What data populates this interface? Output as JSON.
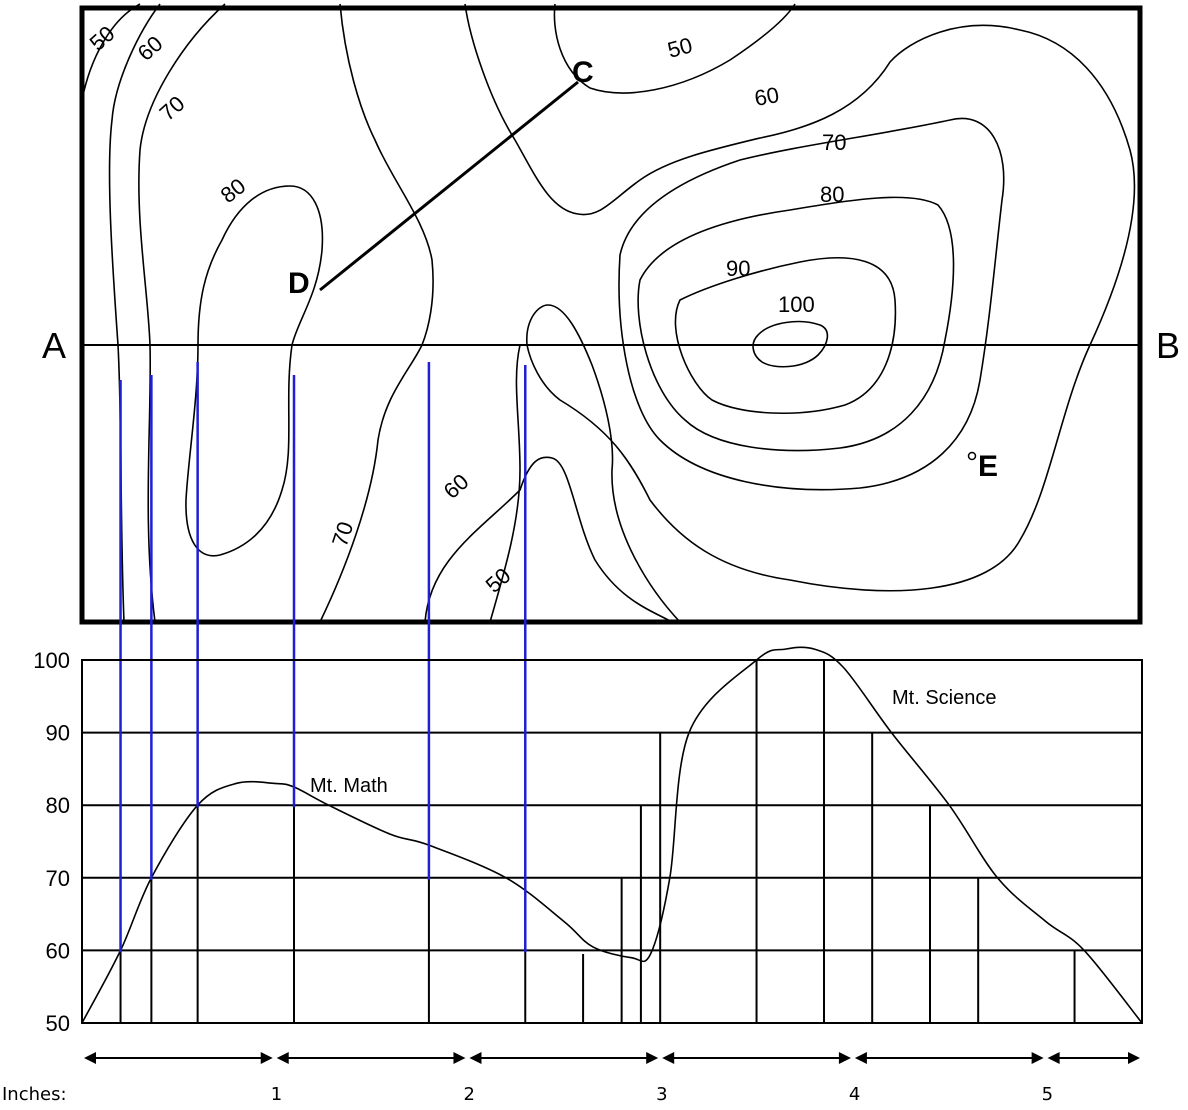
{
  "map": {
    "endpoints": {
      "a": "A",
      "b": "B"
    },
    "points": {
      "c": "C",
      "d": "D",
      "e": "E"
    },
    "contour_labels": [
      {
        "id": "ul-50",
        "text": "50",
        "angle": -42
      },
      {
        "id": "ul-60",
        "text": "60",
        "angle": -42
      },
      {
        "id": "ul-70",
        "text": "70",
        "angle": -42
      },
      {
        "id": "ul-80",
        "text": "80",
        "angle": -38
      },
      {
        "id": "top-50",
        "text": "50",
        "angle": -15
      },
      {
        "id": "right-60",
        "text": "60",
        "angle": -10
      },
      {
        "id": "right-70",
        "text": "70",
        "angle": 0
      },
      {
        "id": "right-80",
        "text": "80",
        "angle": 0
      },
      {
        "id": "right-90",
        "text": "90",
        "angle": 0
      },
      {
        "id": "right-100",
        "text": "100",
        "angle": 0
      },
      {
        "id": "lower-60",
        "text": "60",
        "angle": -42
      },
      {
        "id": "lower-70",
        "text": "70",
        "angle": -72
      },
      {
        "id": "lower-50",
        "text": "50",
        "angle": -42
      }
    ]
  },
  "chart_data": {
    "type": "line",
    "title": "",
    "xlabel": "Inches:",
    "ylabel": "",
    "ylim": [
      50,
      100
    ],
    "yticks": [
      "100",
      "90",
      "80",
      "70",
      "60",
      "50"
    ],
    "xticks": [
      "1",
      "2",
      "3",
      "4",
      "5"
    ],
    "xlim": [
      0,
      5.5
    ],
    "profile_x": [
      0,
      0.2,
      0.36,
      0.6,
      0.8,
      1.0,
      1.1,
      1.28,
      1.6,
      1.8,
      2.2,
      2.5,
      2.65,
      2.85,
      2.95,
      3.05,
      3.15,
      3.5,
      3.65,
      3.8,
      3.95,
      4.2,
      4.5,
      4.75,
      5.0,
      5.2,
      5.5
    ],
    "profile_y": [
      50,
      60,
      70,
      80,
      83,
      83,
      82.5,
      80,
      76,
      74.5,
      70,
      64,
      60.5,
      59,
      59.5,
      70,
      90,
      100,
      101.5,
      101.5,
      99,
      90,
      80,
      70,
      64,
      60,
      50
    ],
    "drop_x": [
      0.2,
      0.36,
      0.6,
      1.1,
      1.8,
      2.3,
      2.6,
      2.8,
      2.9,
      3.0,
      3.5,
      3.85,
      4.1,
      4.4,
      4.65,
      5.15
    ],
    "drop_y": [
      60,
      70,
      80,
      80,
      70,
      60,
      59.5,
      70,
      80,
      90,
      100,
      100,
      90,
      80,
      70,
      60
    ],
    "blue_x": [
      0.2,
      0.36,
      0.6,
      1.1,
      1.8,
      2.3
    ],
    "blue_y": [
      60,
      70,
      80,
      80,
      70,
      60
    ],
    "annotations": [
      {
        "id": "mt-math",
        "text": "Mt. Math"
      },
      {
        "id": "mt-science",
        "text": "Mt. Science"
      }
    ]
  }
}
